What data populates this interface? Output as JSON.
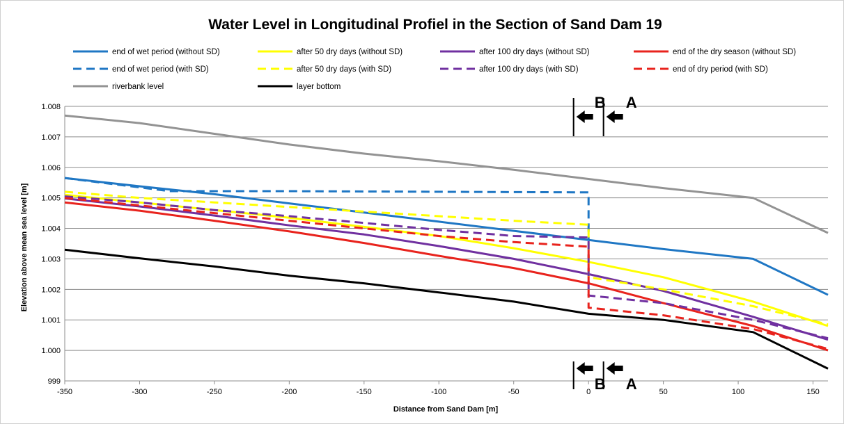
{
  "chart_data": {
    "type": "line",
    "title": "Water Level in Longitudinal Profiel in the Section of Sand Dam 19",
    "xlabel": "Distance from Sand Dam [m]",
    "ylabel": "Elevation above mean sea level [m]",
    "xlim": [
      -350,
      160
    ],
    "ylim": [
      999,
      1008
    ],
    "x_ticks": [
      "-350",
      "-300",
      "-250",
      "-200",
      "-150",
      "-100",
      "-50",
      "0",
      "50",
      "100",
      "150"
    ],
    "y_ticks": [
      "999",
      "1.000",
      "1.001",
      "1.002",
      "1.003",
      "1.004",
      "1.005",
      "1.006",
      "1.007",
      "1.008"
    ],
    "grid": "horizontal",
    "legend_position": "top",
    "series": [
      {
        "name": "end of wet period (without SD)",
        "color": "#1f77c4",
        "dash": "solid",
        "points": [
          [
            -350,
            1005.65
          ],
          [
            -300,
            1005.38
          ],
          [
            -250,
            1005.12
          ],
          [
            -200,
            1004.82
          ],
          [
            -150,
            1004.52
          ],
          [
            -100,
            1004.22
          ],
          [
            -50,
            1003.92
          ],
          [
            0,
            1003.62
          ],
          [
            50,
            1003.32
          ],
          [
            110,
            1003.0
          ],
          [
            160,
            1001.82
          ]
        ]
      },
      {
        "name": "after 50 dry days  (without SD)",
        "color": "#ffff00",
        "dash": "solid",
        "points": [
          [
            -350,
            1005.1
          ],
          [
            -300,
            1004.85
          ],
          [
            -250,
            1004.6
          ],
          [
            -200,
            1004.35
          ],
          [
            -150,
            1004.05
          ],
          [
            -100,
            1003.75
          ],
          [
            -50,
            1003.35
          ],
          [
            0,
            1002.9
          ],
          [
            50,
            1002.4
          ],
          [
            110,
            1001.6
          ],
          [
            160,
            1000.8
          ]
        ]
      },
      {
        "name": "after 100 dry days  (without SD)",
        "color": "#7030a0",
        "dash": "solid",
        "points": [
          [
            -350,
            1004.98
          ],
          [
            -300,
            1004.72
          ],
          [
            -250,
            1004.42
          ],
          [
            -200,
            1004.1
          ],
          [
            -150,
            1003.8
          ],
          [
            -100,
            1003.42
          ],
          [
            -50,
            1003.0
          ],
          [
            0,
            1002.5
          ],
          [
            50,
            1001.95
          ],
          [
            110,
            1001.1
          ],
          [
            160,
            1000.35
          ]
        ]
      },
      {
        "name": "end of the dry season (without SD)",
        "color": "#e8231d",
        "dash": "solid",
        "points": [
          [
            -350,
            1004.85
          ],
          [
            -300,
            1004.58
          ],
          [
            -250,
            1004.25
          ],
          [
            -200,
            1003.9
          ],
          [
            -150,
            1003.52
          ],
          [
            -100,
            1003.1
          ],
          [
            -50,
            1002.7
          ],
          [
            0,
            1002.2
          ],
          [
            50,
            1001.55
          ],
          [
            110,
            1000.8
          ],
          [
            160,
            1000.0
          ]
        ]
      },
      {
        "name": "end of wet period (with SD)",
        "color": "#1f77c4",
        "dash": "dashed",
        "points": [
          [
            -350,
            1005.65
          ],
          [
            -280,
            1005.22
          ],
          [
            -200,
            1005.22
          ],
          [
            0,
            1005.18
          ],
          [
            0,
            1003.6
          ]
        ]
      },
      {
        "name": "after 50 dry days (with SD)",
        "color": "#ffff00",
        "dash": "dashed",
        "points": [
          [
            -350,
            1005.2
          ],
          [
            -300,
            1005.0
          ],
          [
            -250,
            1004.85
          ],
          [
            -200,
            1004.7
          ],
          [
            -150,
            1004.55
          ],
          [
            -100,
            1004.4
          ],
          [
            -50,
            1004.25
          ],
          [
            0,
            1004.12
          ],
          [
            0,
            1002.4
          ],
          [
            50,
            1002.0
          ],
          [
            110,
            1001.45
          ],
          [
            160,
            1000.85
          ]
        ]
      },
      {
        "name": "after 100 dry days (with SD)",
        "color": "#7030a0",
        "dash": "dashed",
        "points": [
          [
            -350,
            1005.05
          ],
          [
            -300,
            1004.85
          ],
          [
            -250,
            1004.6
          ],
          [
            -200,
            1004.4
          ],
          [
            -150,
            1004.18
          ],
          [
            -100,
            1003.95
          ],
          [
            -50,
            1003.75
          ],
          [
            0,
            1003.7
          ],
          [
            0,
            1001.8
          ],
          [
            50,
            1001.55
          ],
          [
            110,
            1001.0
          ],
          [
            160,
            1000.4
          ]
        ]
      },
      {
        "name": "end of dry period (with SD)",
        "color": "#e8231d",
        "dash": "dashed",
        "points": [
          [
            -350,
            1005.0
          ],
          [
            -300,
            1004.75
          ],
          [
            -250,
            1004.5
          ],
          [
            -200,
            1004.25
          ],
          [
            -150,
            1004.0
          ],
          [
            -100,
            1003.75
          ],
          [
            -50,
            1003.55
          ],
          [
            0,
            1003.4
          ],
          [
            0,
            1001.4
          ],
          [
            50,
            1001.15
          ],
          [
            110,
            1000.7
          ],
          [
            160,
            1000.05
          ]
        ]
      },
      {
        "name": "riverbank level",
        "color": "#939393",
        "dash": "solid",
        "points": [
          [
            -350,
            1007.7
          ],
          [
            -300,
            1007.45
          ],
          [
            -250,
            1007.1
          ],
          [
            -200,
            1006.75
          ],
          [
            -150,
            1006.45
          ],
          [
            -100,
            1006.2
          ],
          [
            -50,
            1005.92
          ],
          [
            0,
            1005.62
          ],
          [
            50,
            1005.32
          ],
          [
            110,
            1005.0
          ],
          [
            160,
            1003.85
          ]
        ]
      },
      {
        "name": "layer bottom",
        "color": "#000000",
        "dash": "solid",
        "points": [
          [
            -350,
            1003.3
          ],
          [
            -300,
            1003.02
          ],
          [
            -250,
            1002.75
          ],
          [
            -200,
            1002.45
          ],
          [
            -150,
            1002.2
          ],
          [
            -100,
            1001.9
          ],
          [
            -50,
            1001.6
          ],
          [
            0,
            1001.2
          ],
          [
            50,
            1001.0
          ],
          [
            110,
            1000.6
          ],
          [
            160,
            999.4
          ]
        ]
      }
    ],
    "markers": [
      {
        "label": "B",
        "x": -10,
        "arrow": "left"
      },
      {
        "label": "A",
        "x": 10,
        "arrow": "left"
      }
    ]
  }
}
